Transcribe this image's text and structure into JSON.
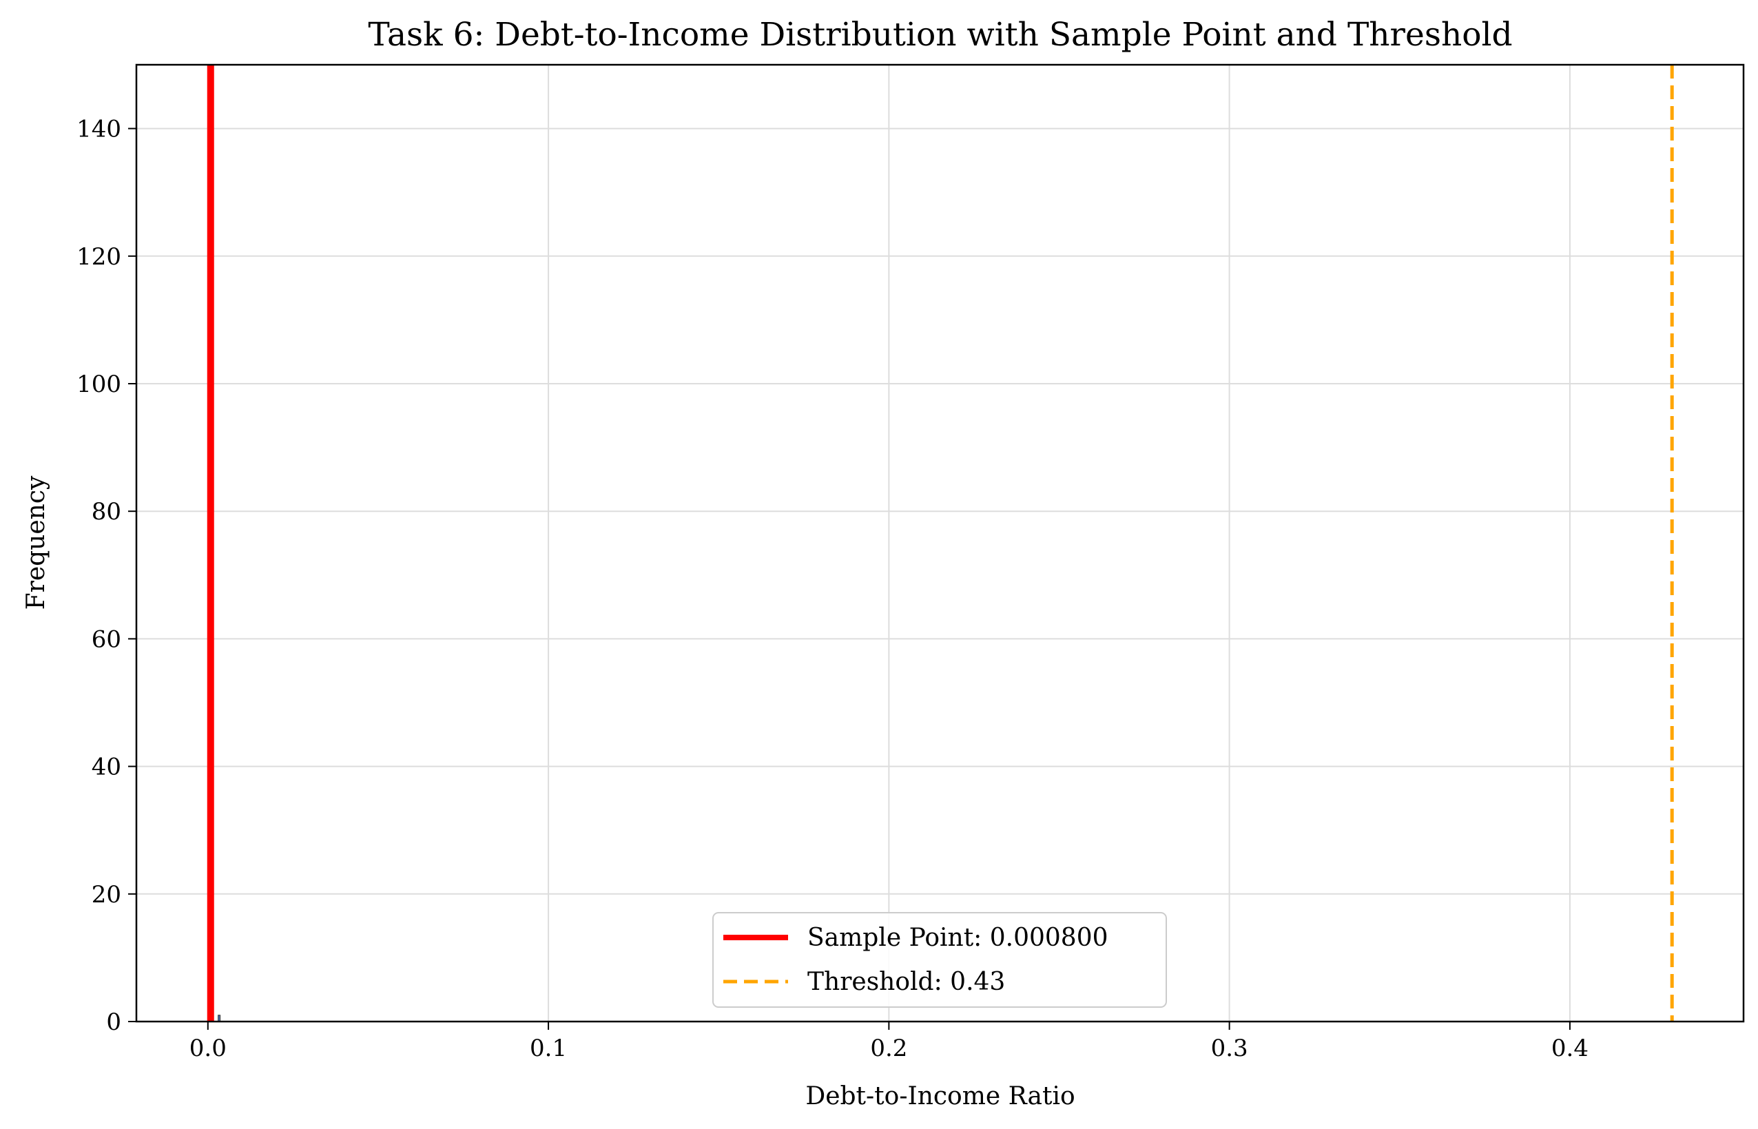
{
  "chart_data": {
    "type": "histogram",
    "title": "Task 6: Debt-to-Income Distribution with Sample Point and Threshold",
    "xlabel": "Debt-to-Income Ratio",
    "ylabel": "Frequency",
    "xlim": [
      -0.021,
      0.451
    ],
    "ylim": [
      0,
      150
    ],
    "xticks": [
      0.0,
      0.1,
      0.2,
      0.3,
      0.4
    ],
    "xtick_labels": [
      "0.0",
      "0.1",
      "0.2",
      "0.3",
      "0.4"
    ],
    "yticks": [
      0,
      20,
      40,
      60,
      80,
      100,
      120,
      140
    ],
    "ytick_labels": [
      "0",
      "20",
      "40",
      "60",
      "80",
      "100",
      "120",
      "140"
    ],
    "grid": true,
    "histogram": {
      "color": "#4c72b0",
      "bins": [
        {
          "x0": 0.0,
          "x1": 0.0016,
          "count": 150
        },
        {
          "x0": 0.003,
          "x1": 0.0036,
          "count": 1
        }
      ]
    },
    "reference_lines": [
      {
        "name": "Sample Point: 0.000800",
        "x": 0.0008,
        "color": "#ff0000",
        "style": "solid"
      },
      {
        "name": "Threshold: 0.43",
        "x": 0.43,
        "color": "#ffa500",
        "style": "dashed"
      }
    ],
    "legend": {
      "position": "lower center",
      "entries": [
        "Sample Point: 0.000800",
        "Threshold: 0.43"
      ]
    }
  }
}
